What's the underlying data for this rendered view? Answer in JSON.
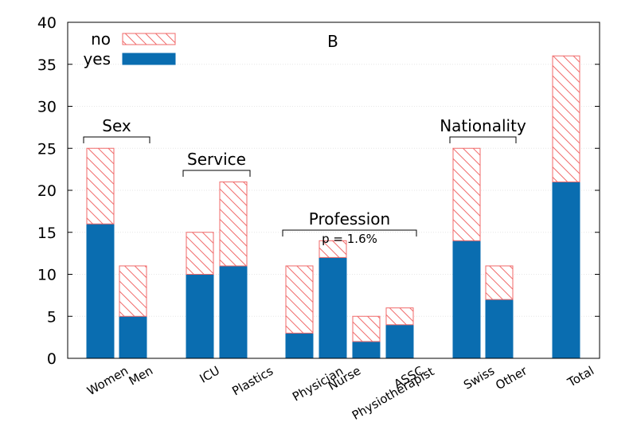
{
  "chart_data": {
    "type": "bar",
    "stacked": true,
    "panel_label": "B",
    "categories": [
      "Women",
      "Men",
      "ICU",
      "Plastics",
      "Physician",
      "Nurse",
      "Physiotherapist",
      "ASSC",
      "Swiss",
      "Other",
      "Total"
    ],
    "series": [
      {
        "name": "yes",
        "color": "#0a6db0",
        "pattern": "solid",
        "values": [
          16,
          5,
          10,
          11,
          3,
          12,
          2,
          4,
          14,
          7,
          21
        ]
      },
      {
        "name": "no",
        "color": "#f06a6a",
        "pattern": "hatched",
        "values": [
          9,
          6,
          5,
          10,
          8,
          2,
          3,
          2,
          11,
          4,
          15
        ]
      }
    ],
    "legend": {
      "placement": "top-left",
      "order": [
        "no",
        "yes"
      ]
    },
    "ylim": [
      0,
      40
    ],
    "yticks": [
      "0",
      "5",
      "10",
      "15",
      "20",
      "25",
      "30",
      "35",
      "40"
    ],
    "grid": true,
    "groups": [
      {
        "label": "Sex",
        "categories": [
          "Women",
          "Men"
        ]
      },
      {
        "label": "Service",
        "categories": [
          "ICU",
          "Plastics"
        ]
      },
      {
        "label": "Profession",
        "categories": [
          "Physician",
          "Nurse",
          "Physiotherapist",
          "ASSC"
        ],
        "annotation": "p = 1.6%"
      },
      {
        "label": "Nationality",
        "categories": [
          "Swiss",
          "Other"
        ]
      }
    ]
  }
}
